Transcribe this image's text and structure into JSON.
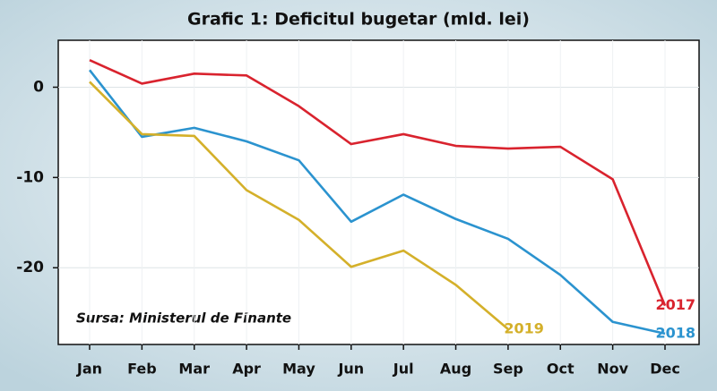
{
  "chart_data": {
    "type": "line",
    "title": "Grafic 1: Deficitul bugetar (mld. lei)",
    "annotation": "Sursa: Ministerul de Finante",
    "categories": [
      "Jan",
      "Feb",
      "Mar",
      "Apr",
      "May",
      "Jun",
      "Jul",
      "Aug",
      "Sep",
      "Oct",
      "Nov",
      "Dec"
    ],
    "series": [
      {
        "name": "2017",
        "color": "#d9232e",
        "values": [
          3.0,
          0.4,
          1.5,
          1.3,
          -2.1,
          -6.3,
          -5.2,
          -6.5,
          -6.8,
          -6.6,
          -10.2,
          -24.2
        ]
      },
      {
        "name": "2018",
        "color": "#2b93cf",
        "values": [
          1.9,
          -5.5,
          -4.5,
          -6.0,
          -8.1,
          -14.9,
          -11.9,
          -14.6,
          -16.8,
          -20.8,
          -26.0,
          -27.3
        ]
      },
      {
        "name": "2019",
        "color": "#d4b02a",
        "values": [
          0.6,
          -5.2,
          -5.4,
          -11.4,
          -14.7,
          -19.9,
          -18.1,
          -21.9,
          -26.8,
          null,
          null,
          null
        ]
      }
    ],
    "ylim": [
      -28.5,
      5.2
    ],
    "yticks": [
      0,
      -10,
      -20
    ],
    "grid": true
  }
}
